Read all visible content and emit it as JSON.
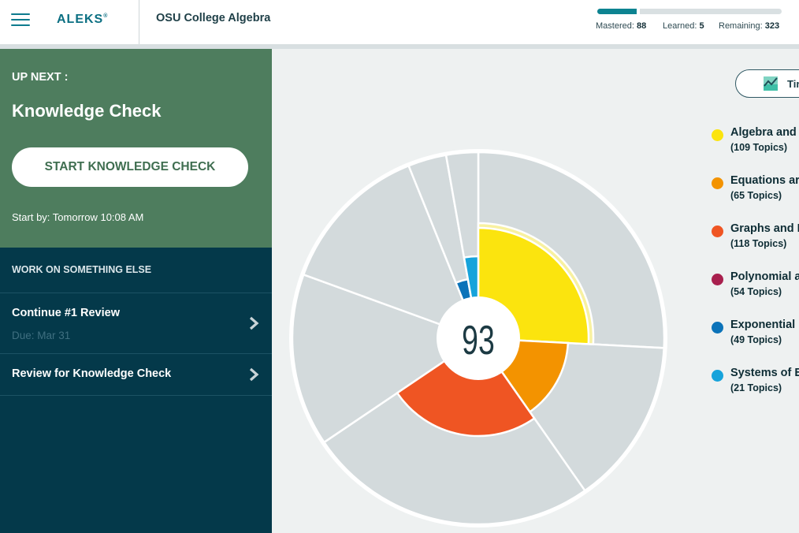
{
  "header": {
    "menu_icon": "hamburger-icon",
    "logo": "ALEKS",
    "logo_mark": "®",
    "course_title": "OSU College Algebra",
    "progress": {
      "mastered_label": "Mastered:",
      "mastered": "88",
      "learned_label": "Learned:",
      "learned": "5",
      "remaining_label": "Remaining:",
      "remaining": "323"
    }
  },
  "up_next": {
    "label": "UP NEXT :",
    "title": "Knowledge Check",
    "button_label": "START KNOWLEDGE CHECK",
    "start_by": "Start by: Tomorrow 10:08 AM"
  },
  "work_else": {
    "label": "WORK ON SOMETHING ELSE",
    "items": [
      {
        "title": "Continue #1 Review",
        "due": "Due: Mar 31",
        "icon": "chevron-right-icon"
      },
      {
        "title": "Review for Knowledge Check",
        "icon": "chevron-right-icon"
      }
    ]
  },
  "main": {
    "timeline_button": "Tir",
    "timeline_icon": "trend-chart-icon",
    "pie_center_value": "93"
  },
  "legend": [
    {
      "name": "Algebra and",
      "count": "(109 Topics)",
      "color": "#fbe40e"
    },
    {
      "name": "Equations ar",
      "count": "(65 Topics)",
      "color": "#f39300"
    },
    {
      "name": "Graphs and I",
      "count": "(118 Topics)",
      "color": "#ef5523"
    },
    {
      "name": "Polynomial a",
      "count": "(54 Topics)",
      "color": "#a8204e"
    },
    {
      "name": "Exponential ",
      "count": "(49 Topics)",
      "color": "#0b73b9"
    },
    {
      "name": "Systems of E",
      "count": "(21 Topics)",
      "color": "#16a3db"
    }
  ],
  "colors": {
    "header_accent": "#0d8391",
    "up_next_bg": "#4e7d5e",
    "work_panel_bg": "#04394a",
    "pie_unfilled": "#d3dadc",
    "main_bg": "#eef1f1"
  }
}
